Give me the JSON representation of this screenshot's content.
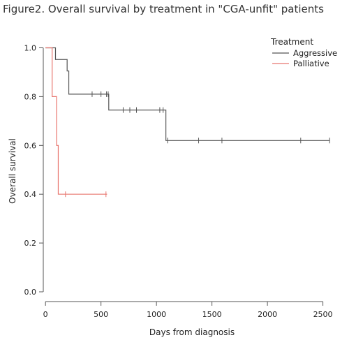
{
  "figure": {
    "title": "Figure2. Overall survival by treatment in \"CGA-unfit\" patients"
  },
  "chart_data": {
    "type": "line",
    "subtype": "kaplan-meier",
    "title": "Figure2. Overall survival by treatment in \"CGA-unfit\" patients",
    "xlabel": "Days from diagnosis",
    "ylabel": "Overall survival",
    "xlim": [
      -20,
      2660
    ],
    "ylim": [
      -0.04,
      1.03
    ],
    "xticks": [
      0,
      500,
      1000,
      1500,
      2000,
      2500
    ],
    "yticks": [
      0.0,
      0.2,
      0.4,
      0.6,
      0.8,
      1.0
    ],
    "ytick_labels": [
      "0.0",
      "0.2",
      "0.4",
      "0.6",
      "0.8",
      "1.0"
    ],
    "grid": false,
    "legend": {
      "title": "Treatment",
      "position": "top-right"
    },
    "series": [
      {
        "name": "Aggressive",
        "color": "#555555",
        "steps": [
          [
            0,
            1.0
          ],
          [
            90,
            0.952
          ],
          [
            195,
            0.905
          ],
          [
            210,
            0.81
          ],
          [
            570,
            0.745
          ],
          [
            1085,
            0.62
          ],
          [
            2560,
            0.62
          ]
        ],
        "censored": [
          [
            420,
            0.81
          ],
          [
            500,
            0.81
          ],
          [
            550,
            0.81
          ],
          [
            565,
            0.81
          ],
          [
            700,
            0.745
          ],
          [
            760,
            0.745
          ],
          [
            820,
            0.745
          ],
          [
            1030,
            0.745
          ],
          [
            1060,
            0.745
          ],
          [
            1100,
            0.62
          ],
          [
            1380,
            0.62
          ],
          [
            1590,
            0.62
          ],
          [
            2300,
            0.62
          ],
          [
            2560,
            0.62
          ]
        ]
      },
      {
        "name": "Palliative",
        "color": "#e8766f",
        "steps": [
          [
            0,
            1.0
          ],
          [
            60,
            0.8
          ],
          [
            100,
            0.6
          ],
          [
            115,
            0.4
          ],
          [
            555,
            0.4
          ]
        ],
        "censored": [
          [
            180,
            0.4
          ],
          [
            545,
            0.4
          ]
        ]
      }
    ]
  }
}
